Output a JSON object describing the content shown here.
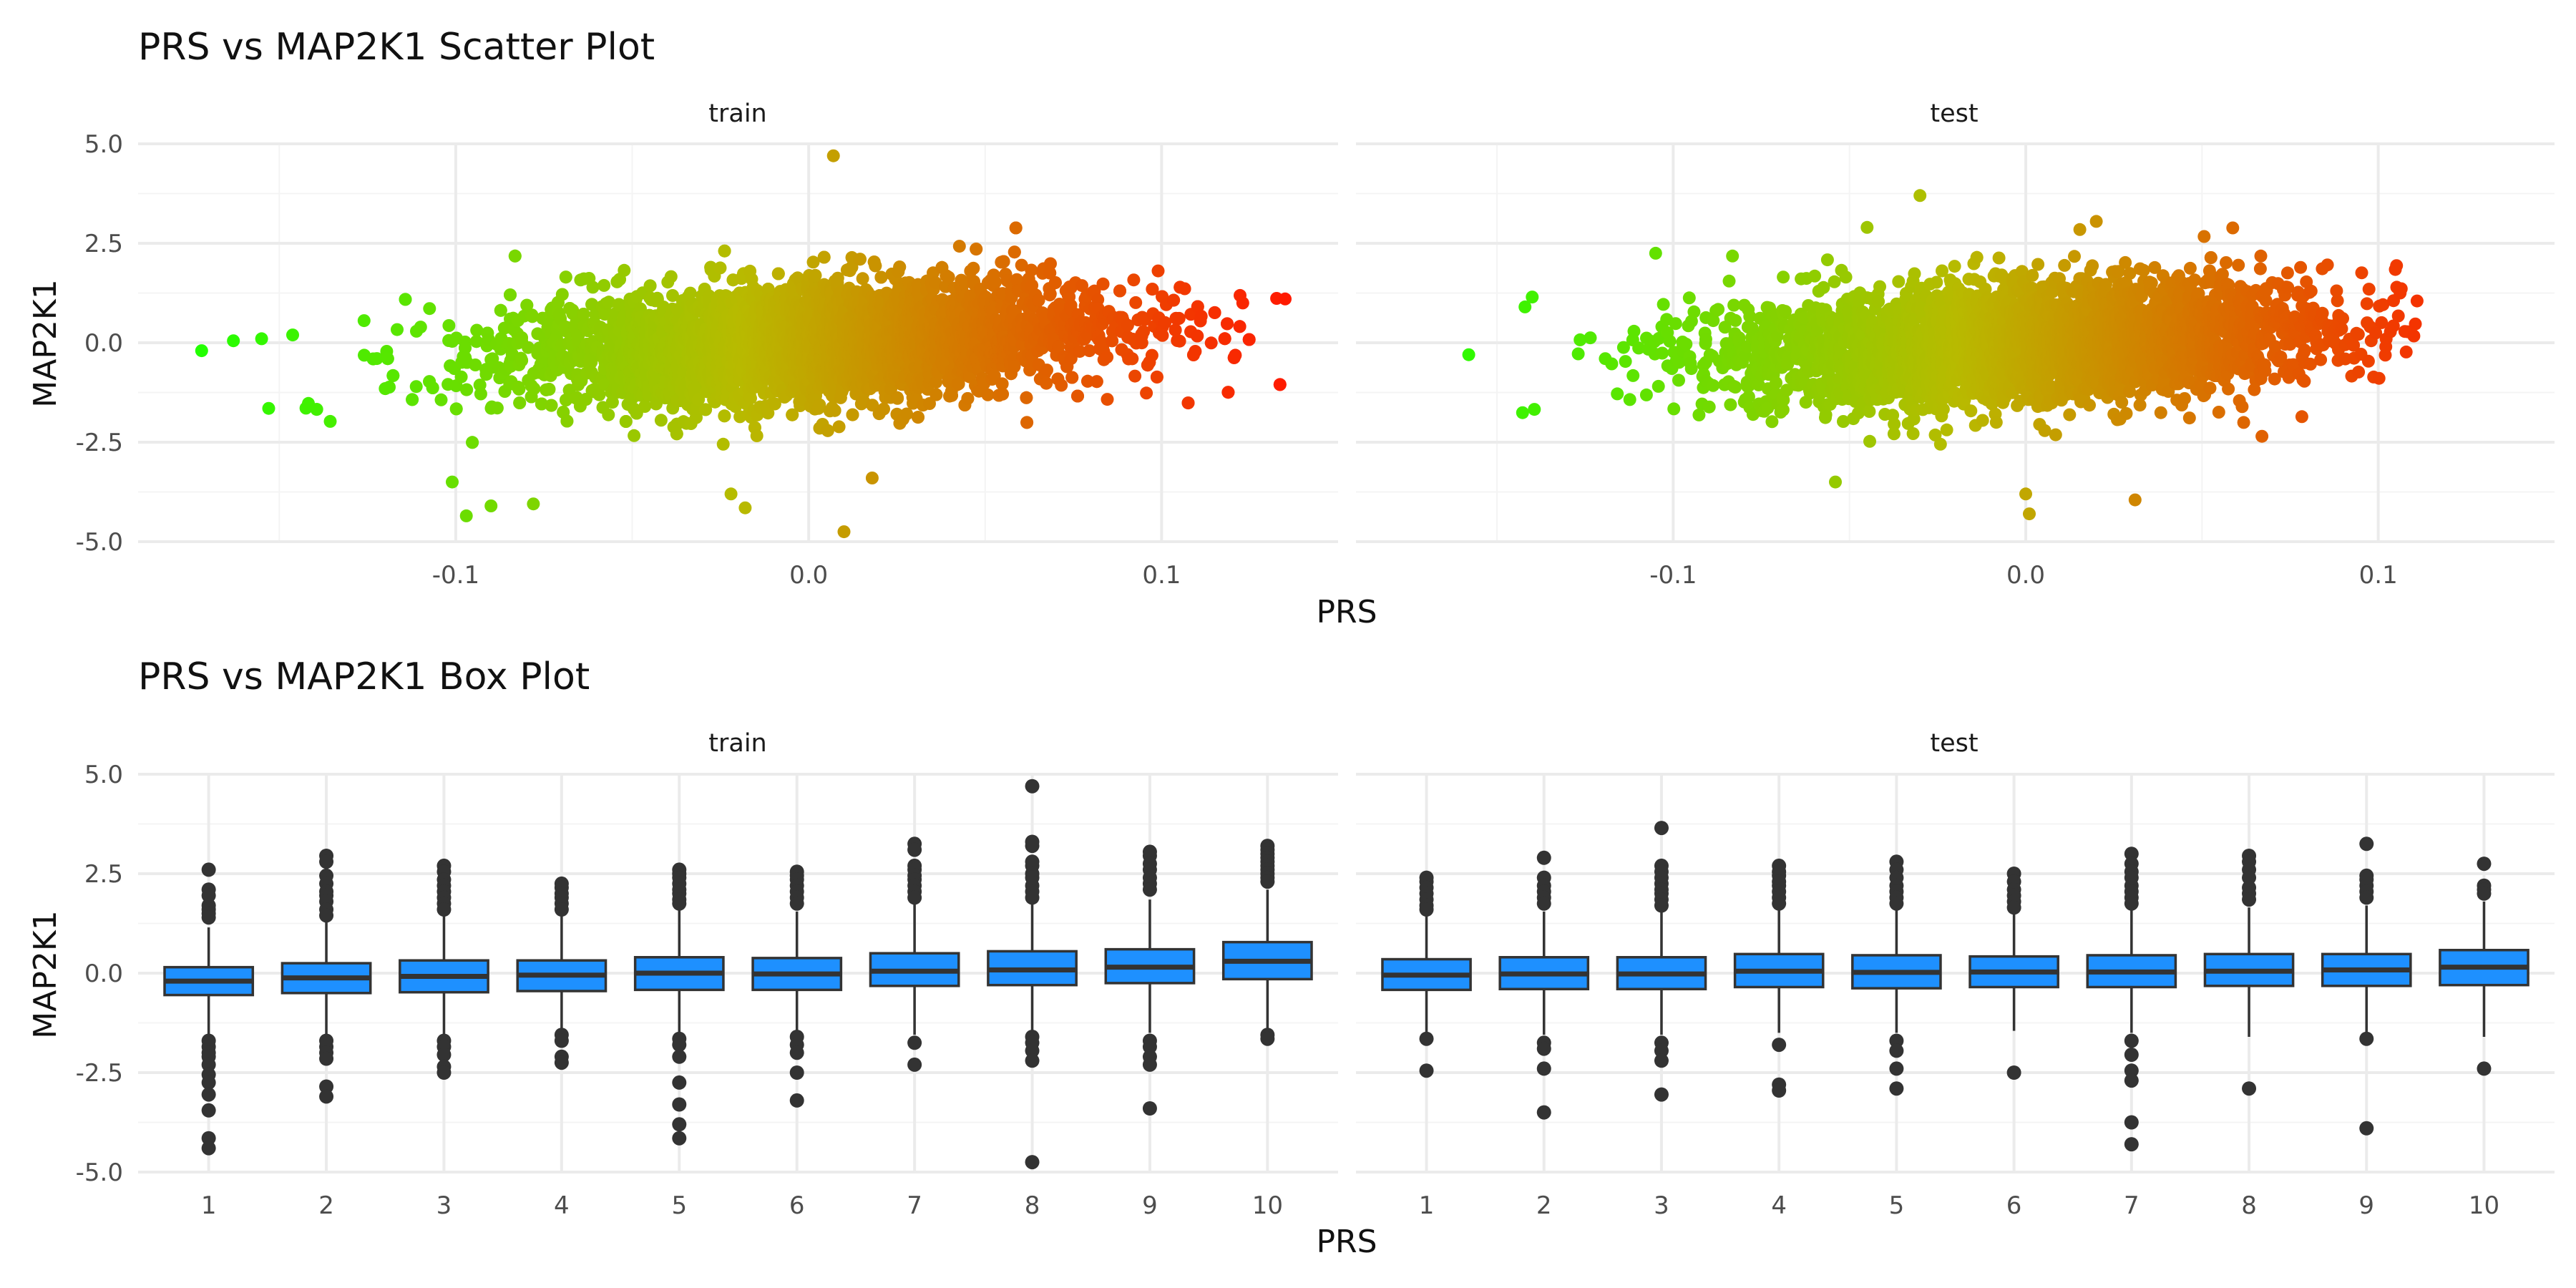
{
  "figure": {
    "scatter_title": "PRS vs MAP2K1 Scatter Plot",
    "box_title": "PRS vs MAP2K1 Box Plot",
    "x_label": "PRS",
    "y_label": "MAP2K1",
    "panels": [
      "train",
      "test"
    ]
  },
  "colors": {
    "gradient_low": "#22ff00",
    "gradient_mid": "#b8ba00",
    "gradient_high": "#ff1a00",
    "box_fill": "#1e90ff",
    "box_stroke": "#333333",
    "grid_major": "#ebebeb",
    "grid_minor": "#f4f4f4"
  },
  "chart_data": [
    {
      "type": "scatter",
      "title": "PRS vs MAP2K1 Scatter Plot",
      "xlabel": "PRS",
      "ylabel": "MAP2K1",
      "facets": [
        "train",
        "test"
      ],
      "xlim": [
        -0.19,
        0.15
      ],
      "ylim": [
        -5.0,
        5.0
      ],
      "x_ticks": [
        -0.1,
        0.0,
        0.1
      ],
      "x_tick_labels": [
        "-0.1",
        "0.0",
        "0.1"
      ],
      "y_ticks": [
        -5.0,
        -2.5,
        0.0,
        2.5,
        5.0
      ],
      "y_tick_labels": [
        "-5.0",
        "-2.5",
        "0.0",
        "2.5",
        "5.0"
      ],
      "color_encodes": "PRS (green = low, red = high)",
      "series": [
        {
          "facet": "train",
          "x_range": [
            -0.172,
            0.135
          ],
          "y_range": [
            -4.75,
            4.7
          ],
          "trend_slope": 4.5,
          "y_sd": 0.75,
          "notable_points": [
            {
              "x": -0.172,
              "y": -0.2
            },
            {
              "x": -0.163,
              "y": 0.05
            },
            {
              "x": -0.155,
              "y": 0.1
            },
            {
              "x": -0.153,
              "y": -1.65
            },
            {
              "x": -0.101,
              "y": -3.5
            },
            {
              "x": -0.097,
              "y": -4.35
            },
            {
              "x": -0.09,
              "y": -4.1
            },
            {
              "x": -0.078,
              "y": -4.05
            },
            {
              "x": -0.022,
              "y": -3.8
            },
            {
              "x": -0.018,
              "y": -4.15
            },
            {
              "x": 0.01,
              "y": -4.75
            },
            {
              "x": 0.018,
              "y": -3.4
            },
            {
              "x": 0.007,
              "y": 4.7
            },
            {
              "x": 0.123,
              "y": 1.0
            },
            {
              "x": 0.135,
              "y": 1.1
            }
          ]
        },
        {
          "facet": "test",
          "x_range": [
            -0.158,
            0.111
          ],
          "y_range": [
            -4.3,
            3.7
          ],
          "trend_slope": 4.5,
          "y_sd": 0.75,
          "notable_points": [
            {
              "x": -0.158,
              "y": -0.3
            },
            {
              "x": -0.14,
              "y": 1.15
            },
            {
              "x": -0.105,
              "y": 2.25
            },
            {
              "x": -0.045,
              "y": 2.9
            },
            {
              "x": -0.03,
              "y": 3.7
            },
            {
              "x": 0.02,
              "y": 3.05
            },
            {
              "x": -0.054,
              "y": -3.5
            },
            {
              "x": 0.0,
              "y": -3.8
            },
            {
              "x": 0.001,
              "y": -4.3
            },
            {
              "x": 0.031,
              "y": -3.95
            },
            {
              "x": 0.067,
              "y": -2.35
            },
            {
              "x": 0.111,
              "y": 1.05
            },
            {
              "x": 0.098,
              "y": 0.05
            }
          ]
        }
      ]
    },
    {
      "type": "box",
      "title": "PRS vs MAP2K1 Box Plot",
      "xlabel": "PRS",
      "ylabel": "MAP2K1",
      "facets": [
        "train",
        "test"
      ],
      "categories": [
        "1",
        "2",
        "3",
        "4",
        "5",
        "6",
        "7",
        "8",
        "9",
        "10"
      ],
      "ylim": [
        -5.0,
        5.0
      ],
      "y_ticks": [
        -5.0,
        -2.5,
        0.0,
        2.5,
        5.0
      ],
      "y_tick_labels": [
        "-5.0",
        "-2.5",
        "0.0",
        "2.5",
        "5.0"
      ],
      "series": [
        {
          "facet": "train",
          "boxes": [
            {
              "q1": -0.55,
              "median": -0.2,
              "q3": 0.15,
              "low": -1.6,
              "high": 1.15,
              "outliers": [
                2.6,
                2.1,
                1.95,
                1.7,
                1.6,
                1.5,
                1.4,
                -1.7,
                -1.85,
                -2.0,
                -2.1,
                -2.3,
                -2.55,
                -2.75,
                -3.05,
                -3.45,
                -4.15,
                -4.4
              ]
            },
            {
              "q1": -0.5,
              "median": -0.12,
              "q3": 0.25,
              "low": -1.6,
              "high": 1.3,
              "outliers": [
                2.95,
                2.8,
                2.45,
                2.25,
                2.05,
                1.95,
                1.8,
                1.6,
                1.45,
                -1.7,
                -1.85,
                -2.0,
                -2.15,
                -2.85,
                -3.1
              ]
            },
            {
              "q1": -0.48,
              "median": -0.08,
              "q3": 0.32,
              "low": -1.6,
              "high": 1.45,
              "outliers": [
                2.7,
                2.55,
                2.35,
                2.2,
                2.05,
                1.9,
                1.75,
                1.6,
                -1.7,
                -1.85,
                -2.05,
                -2.35,
                -2.5
              ]
            },
            {
              "q1": -0.45,
              "median": -0.05,
              "q3": 0.32,
              "low": -1.5,
              "high": 1.45,
              "outliers": [
                2.25,
                2.15,
                2.0,
                1.9,
                1.75,
                1.6,
                -1.55,
                -1.7,
                -2.1,
                -2.25
              ]
            },
            {
              "q1": -0.42,
              "median": 0.0,
              "q3": 0.4,
              "low": -1.6,
              "high": 1.6,
              "outliers": [
                2.6,
                2.5,
                2.4,
                2.25,
                2.1,
                2.0,
                1.85,
                1.75,
                -1.65,
                -1.8,
                -2.1,
                -2.75,
                -3.3,
                -3.8,
                -4.15
              ]
            },
            {
              "q1": -0.42,
              "median": -0.02,
              "q3": 0.38,
              "low": -1.55,
              "high": 1.55,
              "outliers": [
                2.55,
                2.45,
                2.35,
                2.2,
                2.05,
                1.9,
                1.75,
                -1.6,
                -1.8,
                -2.0,
                -2.5,
                -3.2
              ]
            },
            {
              "q1": -0.32,
              "median": 0.05,
              "q3": 0.5,
              "low": -1.55,
              "high": 1.75,
              "outliers": [
                3.25,
                3.1,
                2.7,
                2.6,
                2.45,
                2.35,
                2.2,
                2.05,
                1.9,
                -1.75,
                -2.3
              ]
            },
            {
              "q1": -0.3,
              "median": 0.08,
              "q3": 0.55,
              "low": -1.5,
              "high": 1.8,
              "outliers": [
                4.7,
                3.3,
                3.2,
                2.8,
                2.7,
                2.5,
                2.4,
                2.2,
                2.05,
                1.9,
                -1.6,
                -1.75,
                -1.95,
                -2.2,
                -4.75
              ]
            },
            {
              "q1": -0.25,
              "median": 0.15,
              "q3": 0.6,
              "low": -1.5,
              "high": 1.85,
              "outliers": [
                3.05,
                2.95,
                2.75,
                2.6,
                2.4,
                2.25,
                2.1,
                -1.7,
                -1.85,
                -2.1,
                -2.3,
                -3.4
              ]
            },
            {
              "q1": -0.15,
              "median": 0.3,
              "q3": 0.78,
              "low": -1.5,
              "high": 2.1,
              "outliers": [
                3.2,
                3.1,
                3.0,
                2.9,
                2.8,
                2.7,
                2.6,
                2.5,
                2.4,
                2.3,
                -1.55,
                -1.65
              ]
            }
          ]
        },
        {
          "facet": "test",
          "boxes": [
            {
              "q1": -0.42,
              "median": -0.05,
              "q3": 0.35,
              "low": -1.55,
              "high": 1.5,
              "outliers": [
                2.4,
                2.3,
                2.15,
                2.0,
                1.85,
                1.7,
                1.6,
                -1.65,
                -2.45
              ]
            },
            {
              "q1": -0.4,
              "median": -0.02,
              "q3": 0.4,
              "low": -1.55,
              "high": 1.55,
              "outliers": [
                2.9,
                2.4,
                2.2,
                2.05,
                1.9,
                1.75,
                -1.75,
                -1.9,
                -2.4,
                -3.5
              ]
            },
            {
              "q1": -0.4,
              "median": -0.02,
              "q3": 0.4,
              "low": -1.55,
              "high": 1.55,
              "outliers": [
                3.65,
                2.7,
                2.55,
                2.4,
                2.25,
                2.1,
                2.0,
                1.85,
                1.7,
                -1.75,
                -1.95,
                -2.2,
                -3.05
              ]
            },
            {
              "q1": -0.35,
              "median": 0.05,
              "q3": 0.48,
              "low": -1.5,
              "high": 1.65,
              "outliers": [
                2.7,
                2.55,
                2.45,
                2.3,
                2.2,
                2.05,
                1.9,
                1.75,
                -1.8,
                -2.8,
                -2.95
              ]
            },
            {
              "q1": -0.38,
              "median": 0.02,
              "q3": 0.45,
              "low": -1.5,
              "high": 1.6,
              "outliers": [
                2.8,
                2.6,
                2.4,
                2.2,
                2.05,
                1.9,
                1.75,
                -1.7,
                -1.95,
                -2.4,
                -2.9
              ]
            },
            {
              "q1": -0.35,
              "median": 0.03,
              "q3": 0.42,
              "low": -1.45,
              "high": 1.55,
              "outliers": [
                2.5,
                2.3,
                2.1,
                1.95,
                1.8,
                1.65,
                -2.5
              ]
            },
            {
              "q1": -0.35,
              "median": 0.03,
              "q3": 0.45,
              "low": -1.5,
              "high": 1.6,
              "outliers": [
                3.0,
                2.75,
                2.55,
                2.4,
                2.2,
                2.05,
                1.9,
                1.75,
                -1.7,
                -2.05,
                -2.45,
                -2.7,
                -3.75,
                -4.3
              ]
            },
            {
              "q1": -0.32,
              "median": 0.05,
              "q3": 0.48,
              "low": -1.6,
              "high": 1.65,
              "outliers": [
                2.95,
                2.8,
                2.6,
                2.4,
                2.15,
                2.0,
                1.85,
                -2.9
              ]
            },
            {
              "q1": -0.32,
              "median": 0.08,
              "q3": 0.48,
              "low": -1.65,
              "high": 1.7,
              "outliers": [
                3.25,
                2.45,
                2.35,
                2.2,
                2.05,
                1.9,
                -1.65,
                -3.9
              ]
            },
            {
              "q1": -0.3,
              "median": 0.15,
              "q3": 0.58,
              "low": -1.6,
              "high": 1.8,
              "outliers": [
                2.75,
                2.2,
                2.1,
                2.0,
                -2.4
              ]
            }
          ]
        }
      ]
    }
  ]
}
